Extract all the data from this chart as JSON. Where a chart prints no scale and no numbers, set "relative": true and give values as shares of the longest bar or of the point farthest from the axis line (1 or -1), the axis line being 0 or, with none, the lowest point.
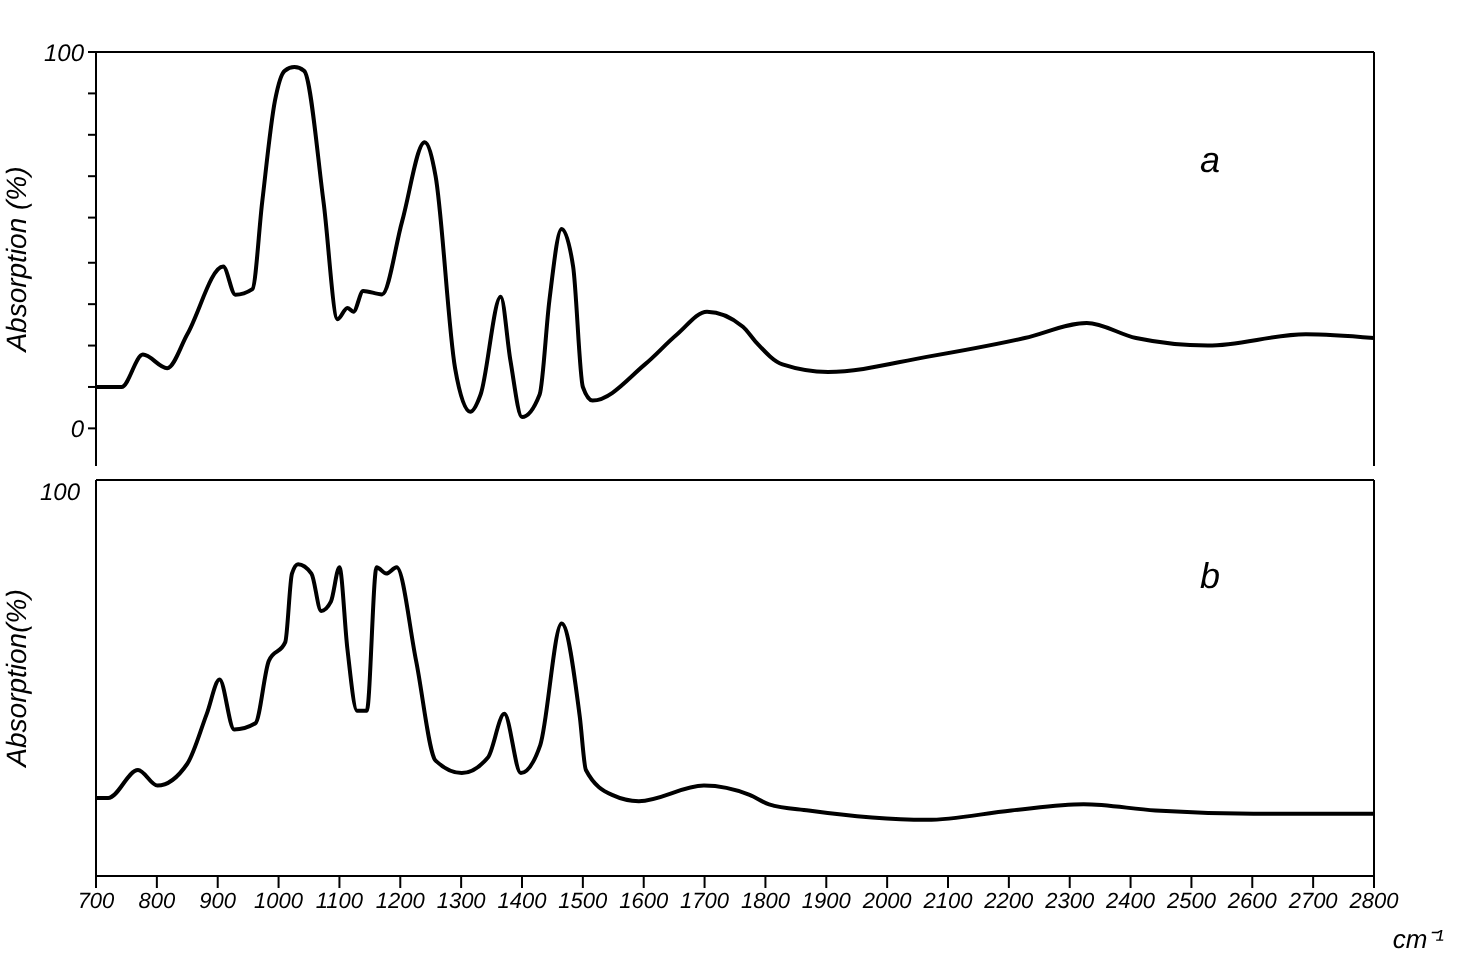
{
  "chart_data": [
    {
      "type": "line",
      "ylabel": "Absorption (%)",
      "annotations": [
        "a"
      ],
      "xlim": [
        700,
        2800
      ],
      "ylim": [
        -10,
        100
      ],
      "yticks": [
        0,
        {
          "value": 11,
          "label": null
        },
        {
          "value": 22,
          "label": null
        },
        {
          "value": 33,
          "label": null
        },
        {
          "value": 44,
          "label": null
        },
        {
          "value": 56,
          "label": null
        },
        {
          "value": 67,
          "label": null
        },
        {
          "value": 78,
          "label": null
        },
        {
          "value": 89,
          "label": null
        },
        100
      ],
      "tick_labels": "y",
      "marker": "none",
      "line_style": "solid",
      "legend": false,
      "grid": false,
      "series": [
        {
          "color": "#000000",
          "x": [
            700,
            742,
            777,
            817,
            850,
            909,
            929,
            957,
            973,
            994,
            1010,
            1026,
            1042,
            1074,
            1097,
            1113,
            1123,
            1139,
            1170,
            1203,
            1240,
            1258,
            1290,
            1315,
            1332,
            1365,
            1381,
            1400,
            1429,
            1445,
            1465,
            1484,
            1500,
            1516,
            1602,
            1655,
            1704,
            1763,
            1784,
            1828,
            1903,
            2065,
            2226,
            2328,
            2409,
            2527,
            2688,
            2800
          ],
          "values": [
            11,
            11,
            19.6,
            16,
            25,
            43,
            35.5,
            37,
            60,
            87,
            95,
            96,
            95,
            60,
            29,
            32,
            31,
            36.5,
            35.6,
            55,
            76,
            67,
            16,
            4.4,
            9,
            35,
            18,
            3,
            9,
            34,
            53,
            43,
            11,
            7.4,
            17,
            25,
            31,
            27,
            23,
            17,
            15,
            19,
            24,
            28,
            24,
            22,
            25,
            24
          ]
        }
      ]
    },
    {
      "type": "line",
      "ylabel": "Absorption(%)",
      "xlabel": "cm⁻¹",
      "annotations": [
        "b",
        "100"
      ],
      "relative": true,
      "xlim": [
        700,
        2800
      ],
      "xticks": [
        700,
        800,
        900,
        1000,
        1100,
        1200,
        1300,
        1400,
        1500,
        1600,
        1700,
        1800,
        1900,
        2000,
        2100,
        2200,
        2300,
        2400,
        2500,
        2600,
        2700,
        2800
      ],
      "marker": "none",
      "line_style": "solid",
      "legend": false,
      "grid": false,
      "series": [
        {
          "color": "#000000",
          "x": [
            700,
            720,
            769,
            801,
            850,
            882,
            903,
            927,
            962,
            984,
            1011,
            1022,
            1032,
            1054,
            1070,
            1086,
            1100,
            1113,
            1129,
            1145,
            1161,
            1177,
            1194,
            1226,
            1258,
            1301,
            1344,
            1371,
            1398,
            1430,
            1465,
            1495,
            1505,
            1548,
            1592,
            1699,
            1774,
            1806,
            1871,
            2065,
            2204,
            2323,
            2441,
            2602,
            2800
          ],
          "values": [
            0.25,
            0.25,
            0.34,
            0.29,
            0.36,
            0.52,
            0.63,
            0.47,
            0.49,
            0.69,
            0.75,
            0.97,
            1,
            0.97,
            0.85,
            0.88,
            0.99,
            0.73,
            0.53,
            0.53,
            0.99,
            0.97,
            0.99,
            0.69,
            0.37,
            0.33,
            0.38,
            0.52,
            0.33,
            0.42,
            0.81,
            0.51,
            0.34,
            0.26,
            0.24,
            0.29,
            0.26,
            0.23,
            0.21,
            0.18,
            0.21,
            0.23,
            0.21,
            0.2,
            0.2
          ]
        }
      ]
    }
  ]
}
